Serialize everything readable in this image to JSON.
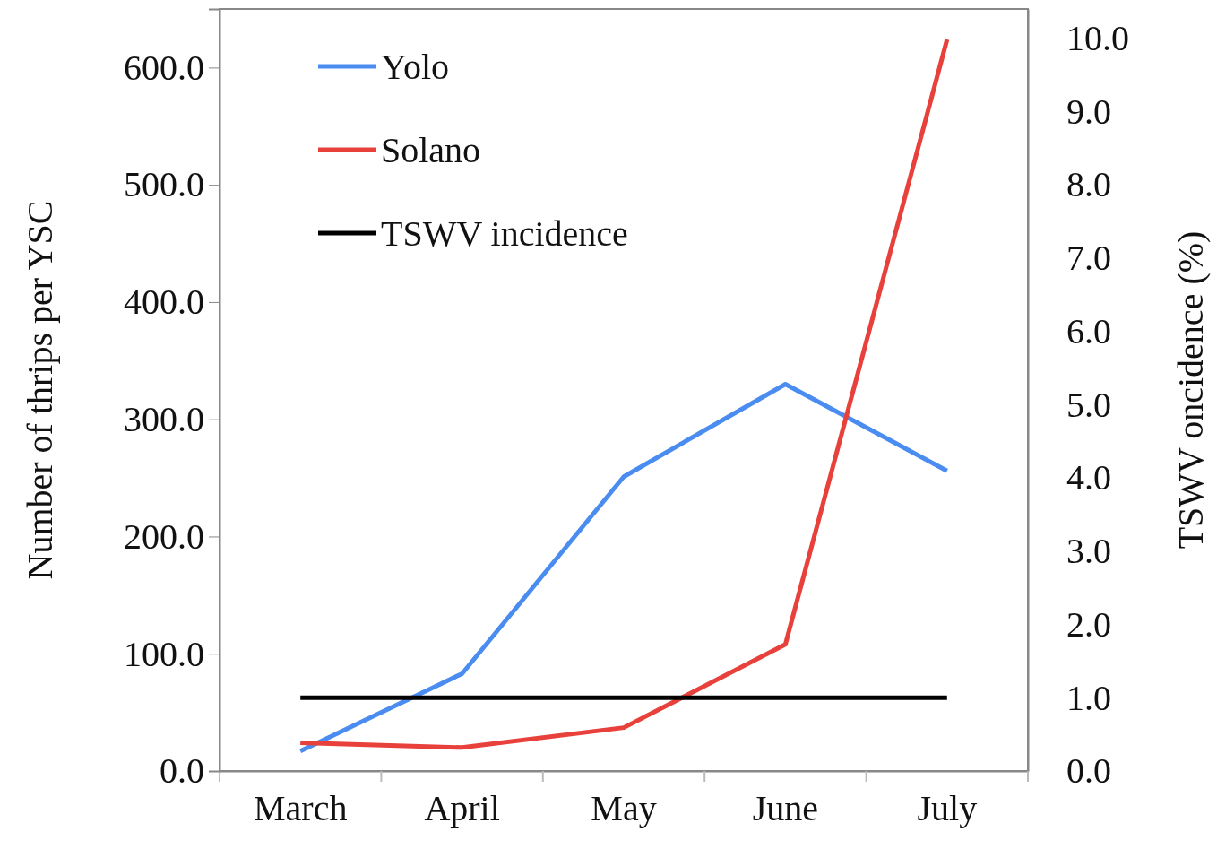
{
  "chart_data": {
    "type": "line",
    "categories": [
      "March",
      "April",
      "May",
      "June",
      "July"
    ],
    "ylabel": "Number of thrips per YSC",
    "y2label": "TSWV oncidence (%)",
    "ylim": [
      0,
      650
    ],
    "yticks": [
      {
        "value": 0,
        "label": "0.0"
      },
      {
        "value": 100,
        "label": "100.0"
      },
      {
        "value": 200,
        "label": "200.0"
      },
      {
        "value": 300,
        "label": "300.0"
      },
      {
        "value": 400,
        "label": "400.0"
      },
      {
        "value": 500,
        "label": "500.0"
      },
      {
        "value": 600,
        "label": "600.0"
      }
    ],
    "y2lim": [
      0,
      10.4
    ],
    "y2ticks": [
      {
        "value": 0,
        "label": "0.0"
      },
      {
        "value": 1,
        "label": "1.0"
      },
      {
        "value": 2,
        "label": "2.0"
      },
      {
        "value": 3,
        "label": "3.0"
      },
      {
        "value": 4,
        "label": "4.0"
      },
      {
        "value": 5,
        "label": "5.0"
      },
      {
        "value": 6,
        "label": "6.0"
      },
      {
        "value": 7,
        "label": "7.0"
      },
      {
        "value": 8,
        "label": "8.0"
      },
      {
        "value": 9,
        "label": "9.0"
      },
      {
        "value": 10,
        "label": "10.0"
      }
    ],
    "series": [
      {
        "name": "Yolo",
        "color": "#4a8cf0",
        "values": [
          17,
          83,
          251,
          330,
          256
        ]
      },
      {
        "name": "Solano",
        "color": "#e8403a",
        "values": [
          24,
          20,
          37,
          108,
          624
        ]
      },
      {
        "name": "TSWV incidence",
        "color": "#000000",
        "axis": "y2",
        "values": [
          1.0,
          1.0,
          1.0,
          1.0,
          1.0
        ]
      }
    ],
    "legend": "top left",
    "grid": false,
    "marker": "none",
    "line_style": "solid"
  }
}
